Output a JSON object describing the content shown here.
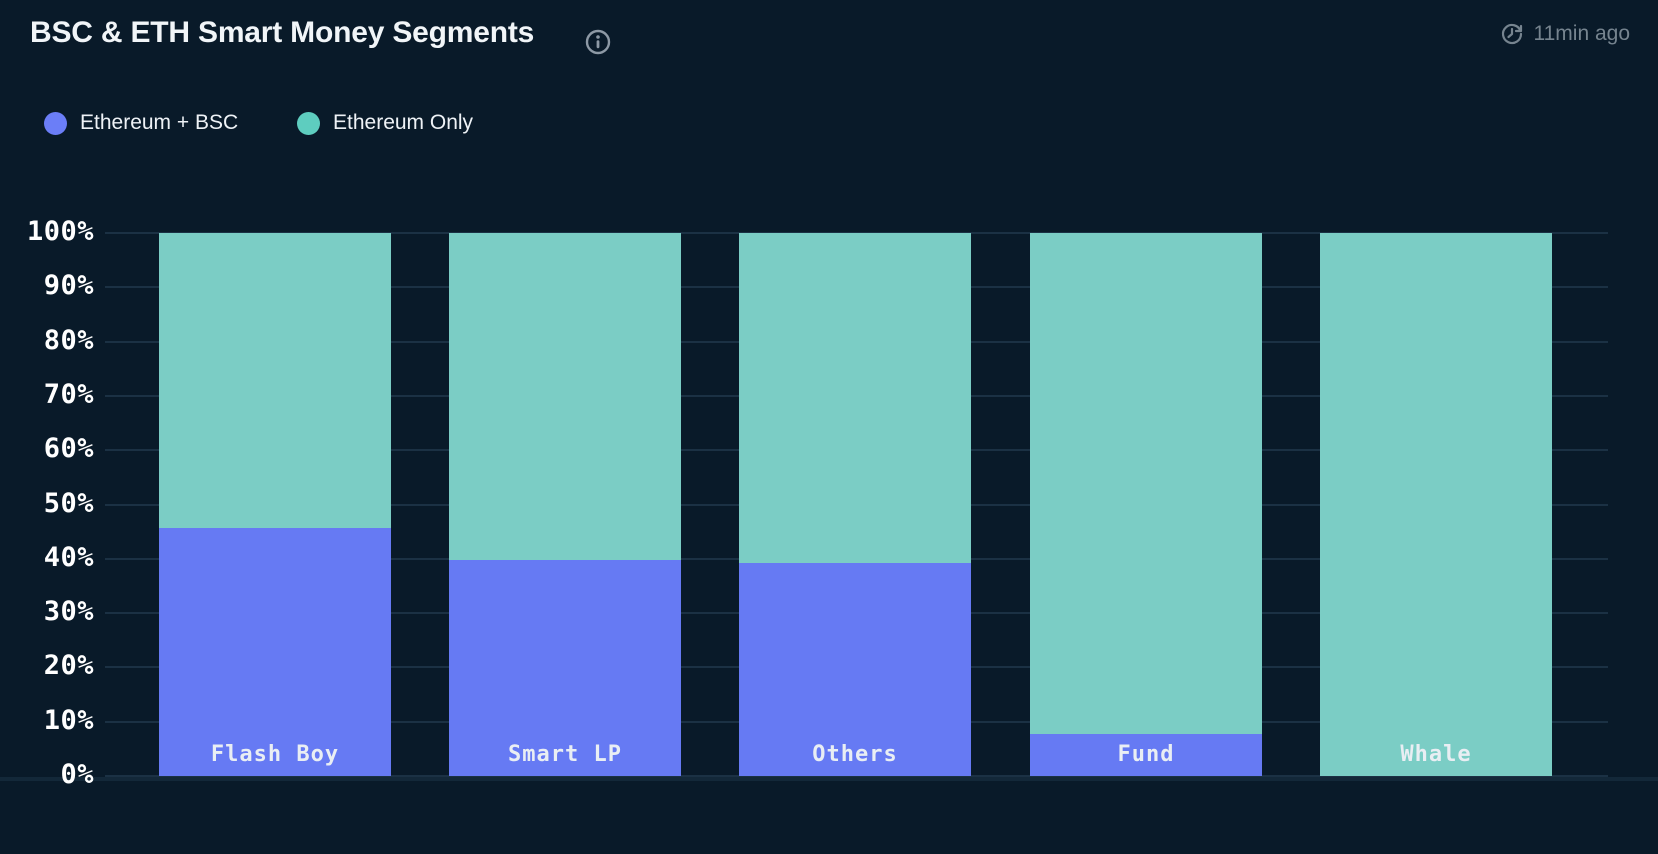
{
  "header": {
    "title": "BSC & ETH Smart Money Segments",
    "last_updated": "11min ago"
  },
  "legend": {
    "items": [
      {
        "label": "Ethereum + BSC",
        "color": "#6b7ef7"
      },
      {
        "label": "Ethereum Only",
        "color": "#5ecdbf"
      }
    ]
  },
  "chart_data": {
    "type": "bar",
    "stacked": true,
    "stack_unit": "percent",
    "title": "BSC & ETH Smart Money Segments",
    "categories": [
      "Flash Boy",
      "Smart LP",
      "Others",
      "Fund",
      "Whale"
    ],
    "series": [
      {
        "name": "Ethereum + BSC",
        "color": "#667af3",
        "values": [
          45.7,
          39.8,
          39.3,
          7.7,
          0
        ]
      },
      {
        "name": "Ethereum Only",
        "color": "#7bcdc5",
        "values": [
          54.3,
          60.2,
          60.7,
          92.3,
          100
        ]
      }
    ],
    "xlabel": "",
    "ylabel": "",
    "ylim": [
      0,
      100
    ],
    "y_ticks": [
      "0%",
      "10%",
      "20%",
      "30%",
      "40%",
      "50%",
      "60%",
      "70%",
      "80%",
      "90%",
      "100%"
    ],
    "grid": true,
    "grid_axis": "y",
    "legend_position": "top-left"
  },
  "colors": {
    "background": "#091a29",
    "gridline": "#1b3144",
    "axis_baseline": "#132839",
    "title_text": "#f1f5f8",
    "y_tick_text": "#ffffff",
    "x_tick_text": "#e9eef3",
    "muted_text": "#76848f",
    "icon_gray": "#8d99a5"
  }
}
